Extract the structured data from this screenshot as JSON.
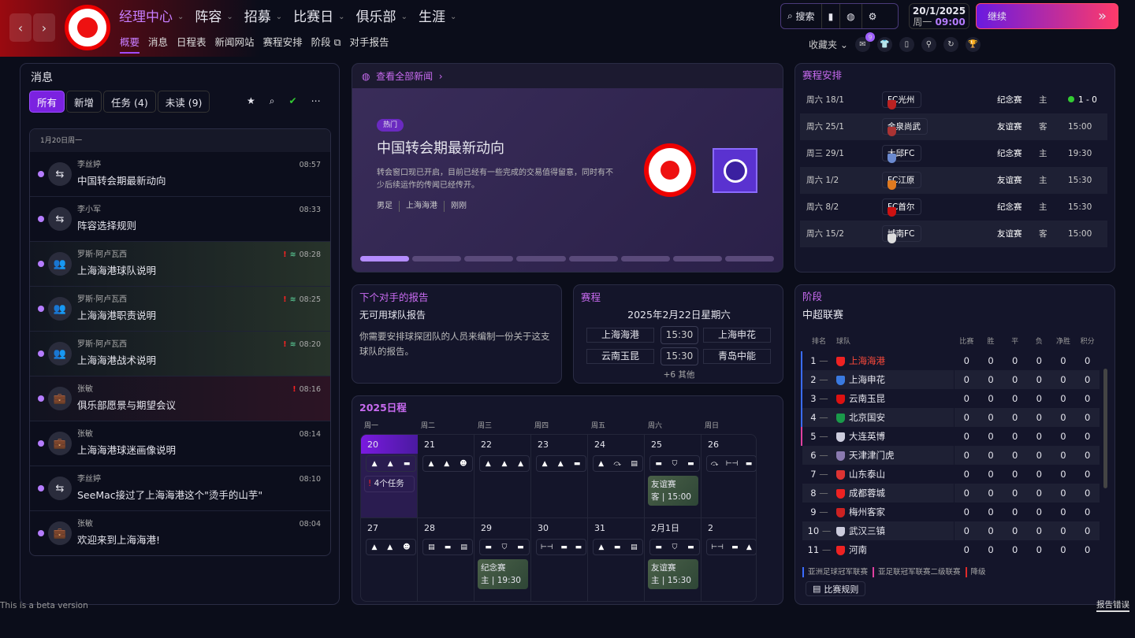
{
  "header": {
    "main_nav": [
      "经理中心",
      "阵容",
      "招募",
      "比赛日",
      "俱乐部",
      "生涯"
    ],
    "sub_nav": [
      "概要",
      "消息",
      "日程表",
      "新闻网站",
      "赛程安排",
      "阶段",
      "对手报告"
    ],
    "search_label": "搜索",
    "date": "20/1/2025",
    "weekday": "周一",
    "time": "09:00",
    "continue_label": "继续",
    "favorites_label": "收藏夹",
    "notification_count": "9",
    "accent": "#a04cff"
  },
  "messages": {
    "title": "消息",
    "tabs": [
      "所有",
      "新增",
      "任务 (4)",
      "未读 (9)"
    ],
    "date_header": "1月20日周一",
    "items": [
      {
        "sender": "李丝婷",
        "subject": "中国转会期最新动向",
        "time": "08:57",
        "icon": "transfer-icon",
        "style": ""
      },
      {
        "sender": "李小军",
        "subject": "阵容选择规则",
        "time": "08:33",
        "icon": "transfer-icon",
        "style": ""
      },
      {
        "sender": "罗斯·阿卢瓦西",
        "subject": "上海海港球队说明",
        "time": "08:28",
        "icon": "team-icon",
        "style": "g",
        "flag": true
      },
      {
        "sender": "罗斯·阿卢瓦西",
        "subject": "上海海港职责说明",
        "time": "08:25",
        "icon": "team-icon",
        "style": "g",
        "flag": true
      },
      {
        "sender": "罗斯·阿卢瓦西",
        "subject": "上海海港战术说明",
        "time": "08:20",
        "icon": "team-icon",
        "style": "g",
        "flag": true
      },
      {
        "sender": "张敏",
        "subject": "俱乐部愿景与期望会议",
        "time": "08:16",
        "icon": "briefcase-icon",
        "style": "r",
        "flag": true
      },
      {
        "sender": "张敏",
        "subject": "上海海港球迷画像说明",
        "time": "08:14",
        "icon": "briefcase-icon",
        "style": ""
      },
      {
        "sender": "李丝婷",
        "subject": "SeeMac接过了上海海港这个\"烫手的山芋\"",
        "time": "08:10",
        "icon": "transfer-icon",
        "style": ""
      },
      {
        "sender": "张敏",
        "subject": "欢迎来到上海海港!",
        "time": "08:04",
        "icon": "briefcase-icon",
        "style": ""
      }
    ]
  },
  "news": {
    "link": "查看全部新闻",
    "tag": "热门",
    "headline": "中国转会期最新动向",
    "body": "转会窗口现已开启，目前已经有一些完成的交易值得留意，同时有不少后续运作的传闻已经传开。",
    "meta": [
      "男足",
      "上海海港",
      "刚刚"
    ],
    "slides": 8,
    "active_slide": 1
  },
  "opponent": {
    "title": "下个对手的报告",
    "subtitle": "无可用球队报告",
    "body": "你需要安排球探团队的人员来编制一份关于这支球队的报告。"
  },
  "fixtures_small": {
    "title": "赛程",
    "date": "2025年2月22日星期六",
    "matches": [
      {
        "home": "上海海港",
        "time": "15:30",
        "away": "上海申花"
      },
      {
        "home": "云南玉昆",
        "time": "15:30",
        "away": "青岛中能"
      }
    ],
    "more": "+6 其他"
  },
  "calendar": {
    "title": "2025日程",
    "weekdays": [
      "周一",
      "周二",
      "周三",
      "周四",
      "周五",
      "周六",
      "周日"
    ],
    "tasks_label": "4个任务",
    "days": [
      {
        "d": "20",
        "icons": [
          "cone",
          "cone",
          "bed"
        ],
        "today": true
      },
      {
        "d": "21",
        "icons": [
          "cone",
          "cone",
          "face"
        ]
      },
      {
        "d": "22",
        "icons": [
          "cone",
          "cone",
          "cone"
        ]
      },
      {
        "d": "23",
        "icons": [
          "cone",
          "cone",
          "bed"
        ]
      },
      {
        "d": "24",
        "icons": [
          "cone",
          "stretch",
          "doc"
        ]
      },
      {
        "d": "25",
        "icons": [
          "bed",
          "shield",
          "bed"
        ],
        "match": {
          "type": "友谊赛",
          "venue": "客",
          "time": "15:00"
        }
      },
      {
        "d": "26",
        "icons": [
          "stretch",
          "dumbbell",
          "bed"
        ]
      },
      {
        "d": "27",
        "icons": [
          "cone",
          "cone",
          "face"
        ]
      },
      {
        "d": "28",
        "icons": [
          "doc",
          "bed",
          "doc"
        ]
      },
      {
        "d": "29",
        "icons": [
          "bed",
          "shield",
          "bed"
        ],
        "match": {
          "type": "纪念赛",
          "venue": "主",
          "time": "19:30"
        }
      },
      {
        "d": "30",
        "icons": [
          "dumbbell",
          "bed",
          "bed"
        ]
      },
      {
        "d": "31",
        "icons": [
          "cone",
          "bed",
          "doc"
        ]
      },
      {
        "d": "2月1日",
        "icons": [
          "bed",
          "shield",
          "bed"
        ],
        "match": {
          "type": "友谊赛",
          "venue": "主",
          "time": "15:30"
        }
      },
      {
        "d": "2",
        "icons": [
          "dumbbell",
          "bed",
          "cone"
        ]
      }
    ]
  },
  "schedule": {
    "title": "赛程安排",
    "rows": [
      {
        "date": "周六 18/1",
        "team": "FC光州",
        "comp": "纪念赛",
        "venue": "主",
        "result": "1 - 0",
        "color": "#b22"
      },
      {
        "date": "周六 25/1",
        "team": "金泉尚武",
        "comp": "友谊赛",
        "venue": "客",
        "result": "15:00",
        "color": "#a33"
      },
      {
        "date": "周三 29/1",
        "team": "大邱FC",
        "comp": "纪念赛",
        "venue": "主",
        "result": "19:30",
        "color": "#6b8ad0"
      },
      {
        "date": "周六 1/2",
        "team": "FC江原",
        "comp": "友谊赛",
        "venue": "主",
        "result": "15:30",
        "color": "#e07a20"
      },
      {
        "date": "周六 8/2",
        "team": "FC首尔",
        "comp": "纪念赛",
        "venue": "主",
        "result": "15:30",
        "color": "#c11"
      },
      {
        "date": "周六 15/2",
        "team": "城南FC",
        "comp": "友谊赛",
        "venue": "客",
        "result": "15:00",
        "color": "#ddd"
      }
    ]
  },
  "stage": {
    "title": "阶段",
    "league": "中超联赛",
    "columns": [
      "排名",
      "球队",
      "比赛",
      "胜",
      "平",
      "负",
      "净胜",
      "积分"
    ],
    "rows": [
      {
        "pos": "1",
        "team": "上海海港",
        "zone": "#3a6cff",
        "crest": "#e22"
      },
      {
        "pos": "2",
        "team": "上海申花",
        "zone": "#3a6cff",
        "crest": "#3a7ae0"
      },
      {
        "pos": "3",
        "team": "云南玉昆",
        "zone": "#3a6cff",
        "crest": "#d11"
      },
      {
        "pos": "4",
        "team": "北京国安",
        "zone": "#3a6cff",
        "crest": "#1a9a4a"
      },
      {
        "pos": "5",
        "team": "大连英博",
        "zone": "#e040a0",
        "crest": "#ccd"
      },
      {
        "pos": "6",
        "team": "天津津门虎",
        "zone": "",
        "crest": "#8a7ab0"
      },
      {
        "pos": "7",
        "team": "山东泰山",
        "zone": "",
        "crest": "#d33"
      },
      {
        "pos": "8",
        "team": "成都蓉城",
        "zone": "",
        "crest": "#e22"
      },
      {
        "pos": "9",
        "team": "梅州客家",
        "zone": "",
        "crest": "#c22"
      },
      {
        "pos": "10",
        "team": "武汉三镇",
        "zone": "",
        "crest": "#ccd"
      },
      {
        "pos": "11",
        "team": "河南",
        "zone": "",
        "crest": "#e22"
      }
    ],
    "stat_value": "0",
    "legend": [
      "亚洲足球冠军联赛",
      "亚足联冠军联赛二级联赛",
      "降级"
    ],
    "rules_label": "比赛规则"
  },
  "footer": {
    "beta": "This is a beta version",
    "report": "报告错误"
  }
}
